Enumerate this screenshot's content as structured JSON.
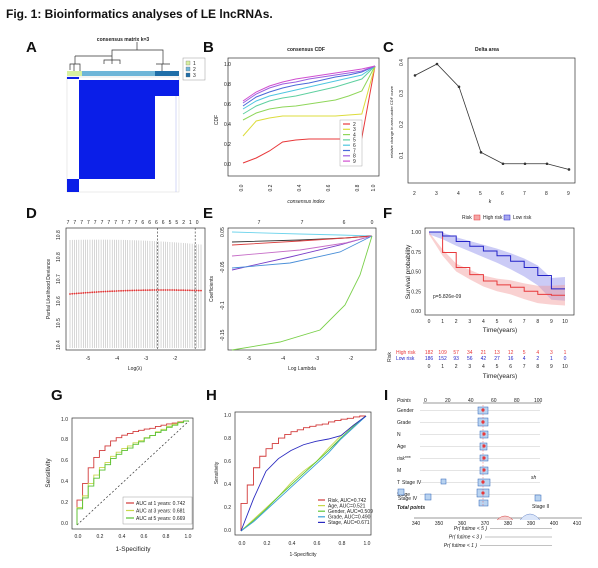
{
  "figure": {
    "title": "Fig. 1: Bioinformatics analyses of LE lncRNAs.",
    "panel_labels": [
      "A",
      "B",
      "C",
      "D",
      "E",
      "F",
      "G",
      "H",
      "I"
    ]
  },
  "colors": {
    "consensus_blue": "#0a1ee8",
    "risk_high": "#e8393b",
    "risk_low": "#2222c8",
    "lasso_dev": "#e23030"
  },
  "panelA": {
    "title": "consensus matrix k=3",
    "legend": [
      "1",
      "2",
      "3"
    ],
    "legend_colors": [
      "#d7f0a0",
      "#6fb6d8",
      "#1f6ea8"
    ]
  },
  "panelB": {
    "title": "consensus CDF",
    "xlabel": "consensus index",
    "ylabel": "CDF",
    "legend": [
      "2",
      "3",
      "4",
      "5",
      "6",
      "7",
      "8",
      "9"
    ]
  },
  "panelC": {
    "title": "Delta area",
    "xlabel": "k",
    "ylabel": "relative change in area under CDF curve"
  },
  "panelD": {
    "top_ticks": [
      "7",
      "7",
      "7",
      "7",
      "7",
      "7",
      "7",
      "7",
      "7",
      "7",
      "7",
      "6",
      "6",
      "6",
      "6",
      "5",
      "5",
      "2",
      "1",
      "0"
    ],
    "xlabel": "Log(λ)",
    "ylabel": "Partial Likelihood Deviance"
  },
  "panelE": {
    "top_ticks": [
      "7",
      "7",
      "6",
      "0"
    ],
    "xlabel": "Log Lambda",
    "ylabel": "Coefficients"
  },
  "panelF": {
    "legend_title": "Risk",
    "legend": [
      "High risk",
      "Low risk"
    ],
    "ylabel": "Survival probability",
    "xlabel": "Time(years)",
    "pvalue": "p=5.826e-09",
    "risk_title": "Risk",
    "risk_table": {
      "groups": [
        "High risk",
        "Low risk"
      ],
      "High risk": [
        "182",
        "109",
        "57",
        "34",
        "21",
        "13",
        "12",
        "5",
        "4",
        "3",
        "1"
      ],
      "Low risk": [
        "186",
        "152",
        "93",
        "56",
        "42",
        "27",
        "16",
        "4",
        "2",
        "1",
        "0"
      ]
    },
    "xlabel2": "Time(years)"
  },
  "panelG": {
    "xlabel": "1-Specificity",
    "ylabel": "Sensitivity",
    "legend": [
      "AUC at 1 years: 0.742",
      "AUC at 3 years: 0.681",
      "AUC at 5 years: 0.669"
    ]
  },
  "panelH": {
    "xlabel": "1-Specificity",
    "ylabel": "Sensitivity",
    "legend": [
      "Risk, AUC=0.742",
      "Age, AUC=0.521",
      "Gender, AUC=0.509",
      "Grade, AUC=0.490",
      "Stage, AUC=0.671"
    ]
  },
  "panelI": {
    "rows": [
      "Points",
      "Gender",
      "Grade",
      "N",
      "Age",
      "risk***",
      "M",
      "T",
      "Stage",
      "Total points"
    ],
    "stage_labels": [
      "Stage IV",
      "Stage II"
    ],
    "pr_rows": [
      "Pr( futime < 5 )",
      "Pr( futime < 3 )",
      "Pr( futime < 1 )"
    ],
    "total_axis": [
      "340",
      "350",
      "360",
      "370",
      "380",
      "390",
      "400",
      "410"
    ]
  },
  "chart_data": [
    {
      "panel": "B",
      "type": "line",
      "x": [
        0,
        0.1,
        0.2,
        0.3,
        0.4,
        0.5,
        0.6,
        0.7,
        0.8,
        0.9,
        1.0
      ],
      "xlim": [
        0,
        1
      ],
      "ylim": [
        0,
        1
      ],
      "series": [
        {
          "name": "2",
          "values": [
            0.03,
            0.08,
            0.15,
            0.24,
            0.26,
            0.27,
            0.27,
            0.27,
            0.27,
            0.28,
            1.0
          ]
        },
        {
          "name": "3",
          "values": [
            0.3,
            0.45,
            0.48,
            0.5,
            0.5,
            0.5,
            0.5,
            0.5,
            0.51,
            0.52,
            1.0
          ]
        },
        {
          "name": "4",
          "values": [
            0.46,
            0.53,
            0.57,
            0.59,
            0.6,
            0.62,
            0.64,
            0.66,
            0.7,
            0.75,
            1.0
          ]
        },
        {
          "name": "5",
          "values": [
            0.52,
            0.6,
            0.65,
            0.68,
            0.7,
            0.73,
            0.76,
            0.79,
            0.83,
            0.87,
            1.0
          ]
        },
        {
          "name": "6",
          "values": [
            0.57,
            0.65,
            0.7,
            0.73,
            0.76,
            0.79,
            0.82,
            0.85,
            0.88,
            0.91,
            1.0
          ]
        },
        {
          "name": "7",
          "values": [
            0.6,
            0.69,
            0.74,
            0.78,
            0.81,
            0.83,
            0.86,
            0.89,
            0.91,
            0.94,
            1.0
          ]
        },
        {
          "name": "8",
          "values": [
            0.63,
            0.72,
            0.78,
            0.82,
            0.84,
            0.87,
            0.89,
            0.91,
            0.93,
            0.95,
            1.0
          ]
        },
        {
          "name": "9",
          "values": [
            0.65,
            0.74,
            0.8,
            0.84,
            0.87,
            0.89,
            0.91,
            0.93,
            0.95,
            0.97,
            1.0
          ]
        }
      ]
    },
    {
      "panel": "C",
      "type": "line",
      "x": [
        2,
        3,
        4,
        5,
        6,
        7,
        8,
        9
      ],
      "values": [
        0.36,
        0.4,
        0.32,
        0.09,
        0.05,
        0.05,
        0.05,
        0.03
      ],
      "xlim": [
        2,
        9
      ],
      "ylim": [
        0,
        0.4
      ]
    },
    {
      "panel": "D",
      "type": "line",
      "x": [
        -5.5,
        -5,
        -4.5,
        -4,
        -3.5,
        -3,
        -2.5,
        -2,
        -1.5
      ],
      "values": [
        10.83,
        10.82,
        10.81,
        10.8,
        10.79,
        10.78,
        10.78,
        10.79,
        10.81
      ],
      "xlim": [
        -6,
        -1.5
      ],
      "ylim": [
        10.6,
        11.0
      ],
      "vlines": [
        -3.0,
        -1.7
      ]
    },
    {
      "panel": "F",
      "type": "line",
      "x": [
        0,
        1,
        2,
        3,
        4,
        5,
        6,
        7,
        8,
        9,
        10
      ],
      "xlim": [
        0,
        10
      ],
      "ylim": [
        0,
        1
      ],
      "series": [
        {
          "name": "High risk",
          "values": [
            1.0,
            0.74,
            0.55,
            0.46,
            0.38,
            0.33,
            0.3,
            0.25,
            0.21,
            0.2,
            0.2
          ]
        },
        {
          "name": "Low risk",
          "values": [
            1.0,
            0.95,
            0.88,
            0.82,
            0.76,
            0.7,
            0.63,
            0.55,
            0.45,
            0.28,
            0.28
          ]
        }
      ]
    },
    {
      "panel": "G",
      "type": "line",
      "x": [
        0,
        0.1,
        0.2,
        0.3,
        0.4,
        0.5,
        0.6,
        0.7,
        0.8,
        0.9,
        1.0
      ],
      "xlim": [
        0,
        1
      ],
      "ylim": [
        0,
        1
      ],
      "series": [
        {
          "name": "AUC at 1 years: 0.742",
          "values": [
            0,
            0.4,
            0.65,
            0.76,
            0.84,
            0.88,
            0.91,
            0.93,
            0.96,
            0.98,
            1.0
          ]
        },
        {
          "name": "AUC at 3 years: 0.681",
          "values": [
            0,
            0.28,
            0.48,
            0.6,
            0.7,
            0.76,
            0.81,
            0.86,
            0.92,
            0.97,
            1.0
          ]
        },
        {
          "name": "AUC at 5 years: 0.669",
          "values": [
            0,
            0.26,
            0.45,
            0.58,
            0.68,
            0.74,
            0.8,
            0.86,
            0.91,
            0.96,
            1.0
          ]
        }
      ]
    },
    {
      "panel": "H",
      "type": "line",
      "x": [
        0,
        0.1,
        0.2,
        0.3,
        0.4,
        0.5,
        0.6,
        0.7,
        0.8,
        0.9,
        1.0
      ],
      "xlim": [
        0,
        1
      ],
      "ylim": [
        0,
        1
      ],
      "series": [
        {
          "name": "Risk, AUC=0.742",
          "values": [
            0,
            0.4,
            0.65,
            0.76,
            0.84,
            0.88,
            0.91,
            0.93,
            0.96,
            0.98,
            1.0
          ]
        },
        {
          "name": "Age, AUC=0.521",
          "values": [
            0,
            0.1,
            0.2,
            0.3,
            0.42,
            0.52,
            0.6,
            0.72,
            0.83,
            0.92,
            1.0
          ]
        },
        {
          "name": "Gender, AUC=0.509",
          "values": [
            0,
            0.09,
            0.19,
            0.3,
            0.4,
            0.5,
            0.6,
            0.7,
            0.81,
            0.91,
            1.0
          ]
        },
        {
          "name": "Grade, AUC=0.490",
          "values": [
            0,
            0.08,
            0.18,
            0.28,
            0.38,
            0.48,
            0.58,
            0.68,
            0.8,
            0.9,
            1.0
          ]
        },
        {
          "name": "Stage, AUC=0.671",
          "values": [
            0,
            0.28,
            0.52,
            0.63,
            0.7,
            0.75,
            0.78,
            0.8,
            0.83,
            0.92,
            1.0
          ]
        }
      ]
    }
  ]
}
